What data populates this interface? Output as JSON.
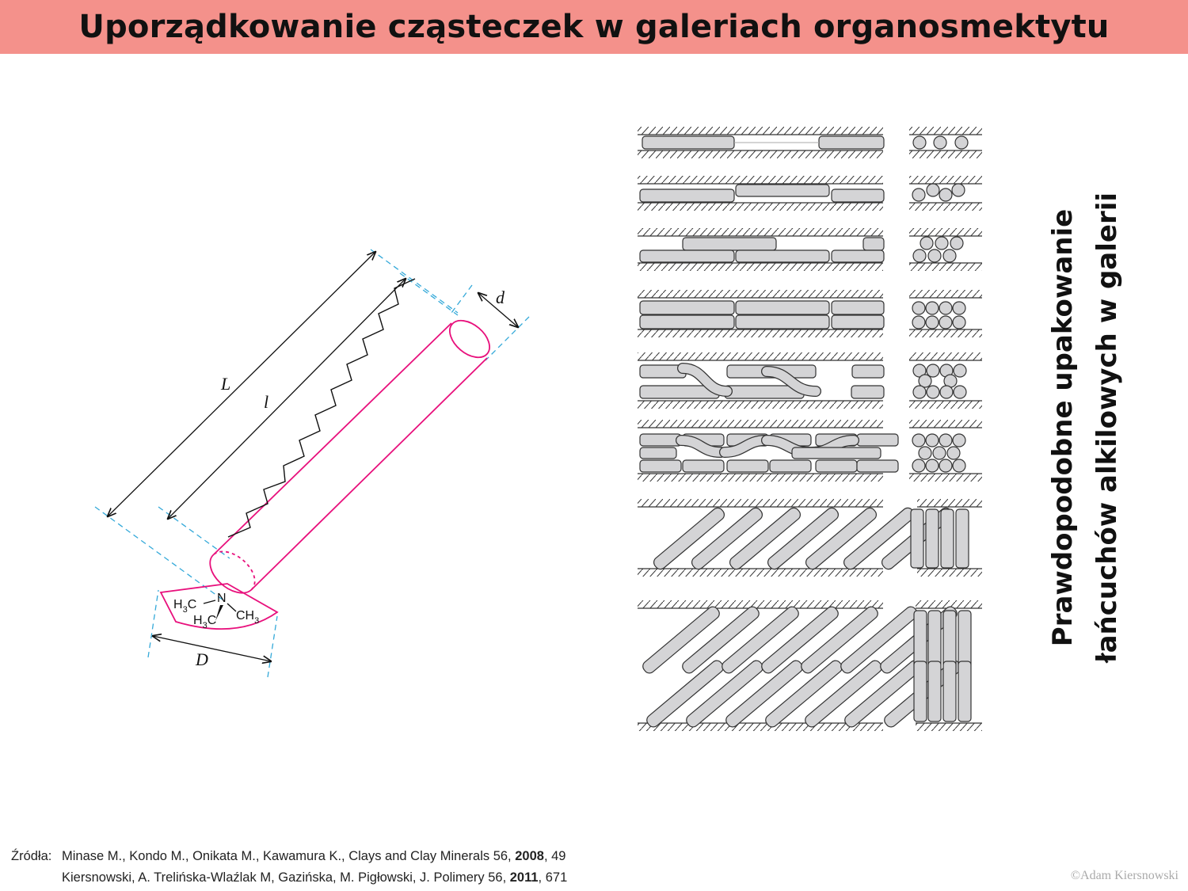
{
  "title": "Uporządkowanie cząsteczek w galeriach organosmektytu",
  "figure_molecule": {
    "label_L": "L",
    "label_l": "l",
    "label_d": "d",
    "label_D": "D",
    "chem": {
      "n": "N",
      "h": "H",
      "c": "C",
      "sub3": "3",
      "ch": "CH"
    },
    "colors": {
      "molecule": "#e8107c",
      "dimension": "#34a9d9",
      "ink": "#111111"
    }
  },
  "caption": {
    "line1": "Prawdopodobne upakowanie",
    "line2": "łańcuchów alkilowych w galerii"
  },
  "sources": {
    "label": "Źródła:",
    "ref1": {
      "text": "Minase M., Kondo M., Onikata M., Kawamura K., Clays and Clay Minerals 56, ",
      "year": "2008",
      "pages": ", 49"
    },
    "ref2": {
      "text": "Kiersnowski, A. Trelińska-Wlaźlak M, Gazińska, M. Pigłowski, J. Polimery 56, ",
      "year": "2011",
      "pages": ", 671"
    }
  },
  "copyright": "©Adam Kiersnowski",
  "colors": {
    "title_bar": "#f4918b",
    "chain_fill": "#d4d4d6"
  }
}
